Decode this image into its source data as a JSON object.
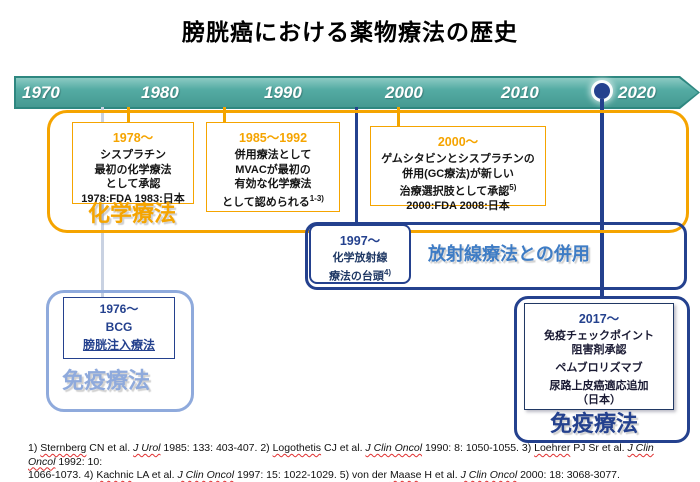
{
  "title": "膀胱癌における薬物療法の歴史",
  "colors": {
    "timeline_teal": "#4aa29b",
    "chemo_orange": "#f5a400",
    "navy_blue": "#24418e",
    "radio_label_blue": "#3e7cc5",
    "immuno_light_blue": "#8faadc",
    "gray_connector": "#c9d2e2",
    "spellcheck_red": "#e03030"
  },
  "timeline": {
    "years": [
      "1970",
      "1980",
      "1990",
      "2000",
      "2010",
      "2020"
    ],
    "marker_year": "2020"
  },
  "containers": {
    "chemo_label": "化学療法",
    "radio_label": "放射線療法との併用",
    "immuno_left_label": "免疫療法",
    "immuno_right_label": "免疫療法"
  },
  "boxes": {
    "b1978": {
      "title": "1978～",
      "lines": [
        "シスプラチン",
        "最初の化学療法",
        "として承認",
        "1978:FDA 1983:日本"
      ]
    },
    "b1985": {
      "title": "1985～1992",
      "lines": [
        "併用療法として",
        "MVACが最初の",
        "有効な化学療法",
        "として認められる"
      ],
      "sup": "1-3)"
    },
    "b2000": {
      "title": "2000～",
      "lines": [
        "ゲムシタビンとシスプラチンの",
        "併用(GC療法)が新しい",
        "治療選択肢として承認"
      ],
      "sup": "5)",
      "last_line": "2000:FDA 2008:日本"
    },
    "b1997": {
      "title": "1997～",
      "lines": [
        "化学放射線",
        "療法の台頭"
      ],
      "sup": "4)"
    },
    "b1976": {
      "lines": [
        "1976～",
        "BCG",
        "膀胱注入療法"
      ]
    },
    "b2017": {
      "title": "2017～",
      "lines": [
        "免疫チェックポイント",
        "阻害剤承認",
        "ペムブロリズマブ",
        "尿路上皮癌適応追加",
        "（日本）"
      ]
    }
  },
  "footnotes": {
    "lines": [
      [
        {
          "t": "1) "
        },
        {
          "t": "Sternberg",
          "w": true
        },
        {
          "t": " CN et al. "
        },
        {
          "t": "J Urol",
          "i": true,
          "w": true
        },
        {
          "t": " 1985: 133: 403-407. 2) "
        },
        {
          "t": "Logothetis",
          "w": true
        },
        {
          "t": " CJ et al. "
        },
        {
          "t": "J Clin Oncol",
          "i": true,
          "w": true
        },
        {
          "t": " 1990: 8: 1050-1055. 3) "
        },
        {
          "t": "Loehrer",
          "w": true
        },
        {
          "t": " PJ Sr et al. "
        },
        {
          "t": "J Clin Oncol",
          "i": true,
          "w": true
        },
        {
          "t": " 1992: 10:"
        }
      ],
      [
        {
          "t": "1066-1073. 4) "
        },
        {
          "t": "Kachnic",
          "w": true
        },
        {
          "t": " LA et al. "
        },
        {
          "t": "J Clin Oncol",
          "i": true,
          "w": true
        },
        {
          "t": " 1997: 15: 1022-1029. 5) von der "
        },
        {
          "t": "Maase",
          "w": true
        },
        {
          "t": " H et al. "
        },
        {
          "t": "J Clin Oncol",
          "i": true,
          "w": true
        },
        {
          "t": " 2000: 18: 3068-3077."
        }
      ]
    ]
  }
}
